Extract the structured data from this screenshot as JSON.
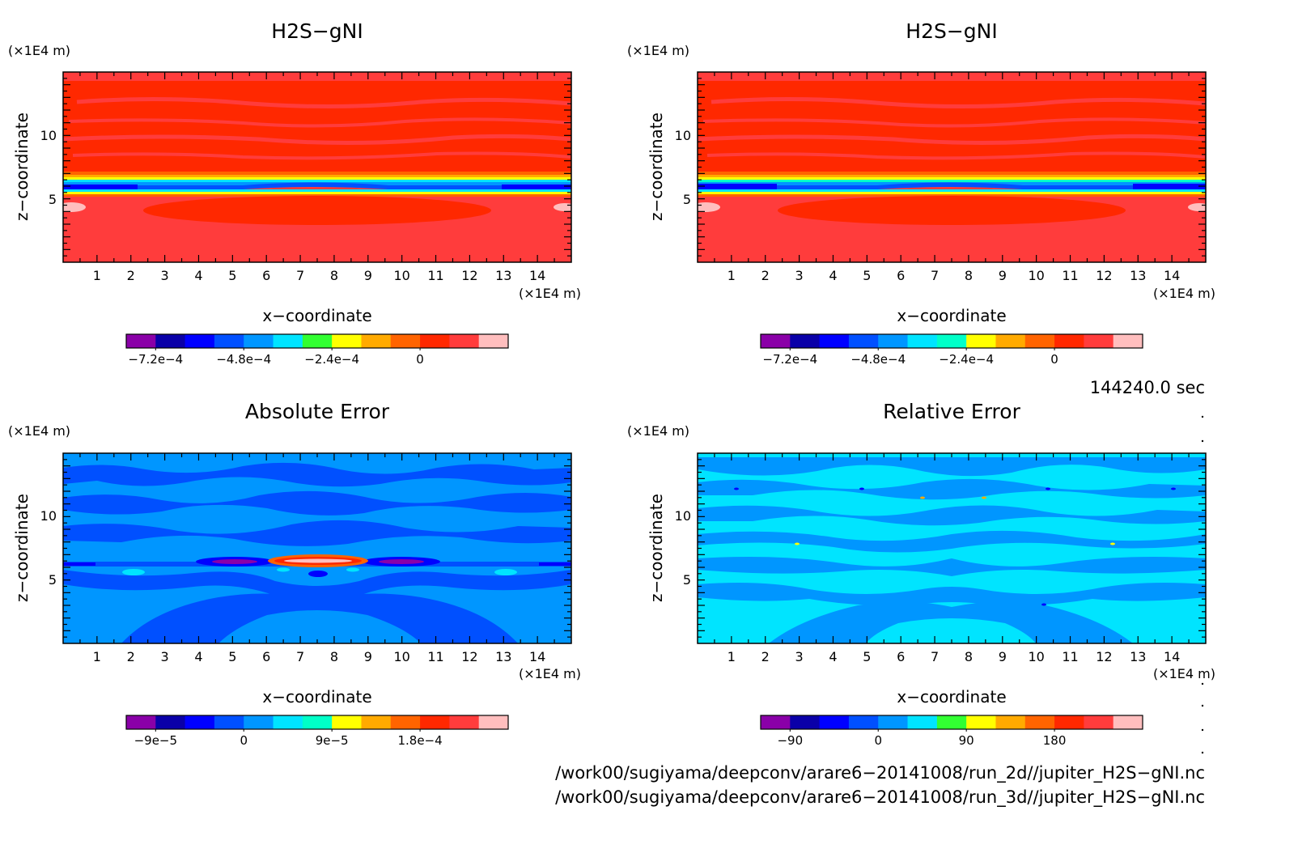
{
  "chart_data": [
    {
      "type": "heatmap",
      "title": "H2S−gNI",
      "xlabel": "x−coordinate",
      "ylabel": "z−coordinate",
      "x_unit": "(×1E4 m)",
      "y_unit": "(×1E4 m)",
      "x_ticks": [
        "1",
        "2",
        "3",
        "4",
        "5",
        "6",
        "7",
        "8",
        "9",
        "10",
        "11",
        "12",
        "13",
        "14"
      ],
      "y_ticks": [
        "5",
        "10"
      ],
      "xlim": [
        0,
        15
      ],
      "ylim": [
        0,
        15
      ],
      "colorbar": {
        "colors": [
          "#8a00a8",
          "#0a00a8",
          "#0000ff",
          "#0050ff",
          "#0096ff",
          "#00e4ff",
          "#32ff32",
          "#ffff00",
          "#ffaa00",
          "#ff6400",
          "#ff2800",
          "#ff3c3c",
          "#ffbebe"
        ],
        "labels": [
          "−7.2e−4",
          "−4.8e−4",
          "−2.4e−4",
          "0"
        ]
      }
    },
    {
      "type": "heatmap",
      "title": "H2S−gNI",
      "xlabel": "x−coordinate",
      "ylabel": "z−coordinate",
      "x_unit": "(×1E4 m)",
      "y_unit": "(×1E4 m)",
      "x_ticks": [
        "1",
        "2",
        "3",
        "4",
        "5",
        "6",
        "7",
        "8",
        "9",
        "10",
        "11",
        "12",
        "13",
        "14"
      ],
      "y_ticks": [
        "5",
        "10"
      ],
      "xlim": [
        0,
        15
      ],
      "ylim": [
        0,
        15
      ],
      "colorbar": {
        "colors": [
          "#8a00a8",
          "#0a00a8",
          "#0000ff",
          "#0050ff",
          "#0096ff",
          "#00e4ff",
          "#00ffc8",
          "#ffff00",
          "#ffaa00",
          "#ff6400",
          "#ff2800",
          "#ff3c3c",
          "#ffbebe"
        ],
        "labels": [
          "−7.2e−4",
          "−4.8e−4",
          "−2.4e−4",
          "0"
        ]
      }
    },
    {
      "type": "heatmap",
      "title": "Absolute Error",
      "xlabel": "x−coordinate",
      "ylabel": "z−coordinate",
      "x_unit": "(×1E4 m)",
      "y_unit": "(×1E4 m)",
      "x_ticks": [
        "1",
        "2",
        "3",
        "4",
        "5",
        "6",
        "7",
        "8",
        "9",
        "10",
        "11",
        "12",
        "13",
        "14"
      ],
      "y_ticks": [
        "5",
        "10"
      ],
      "xlim": [
        0,
        15
      ],
      "ylim": [
        0,
        15
      ],
      "colorbar": {
        "colors": [
          "#8a00a8",
          "#0a00a8",
          "#0000ff",
          "#0050ff",
          "#0096ff",
          "#00e4ff",
          "#00ffc8",
          "#ffff00",
          "#ffaa00",
          "#ff6400",
          "#ff2800",
          "#ff3c3c",
          "#ffbebe"
        ],
        "labels": [
          "−9e−5",
          "0",
          "9e−5",
          "1.8e−4"
        ]
      }
    },
    {
      "type": "heatmap",
      "title": "Relative Error",
      "xlabel": "x−coordinate",
      "ylabel": "z−coordinate",
      "x_unit": "(×1E4 m)",
      "y_unit": "(×1E4 m)",
      "x_ticks": [
        "1",
        "2",
        "3",
        "4",
        "5",
        "6",
        "7",
        "8",
        "9",
        "10",
        "11",
        "12",
        "13",
        "14"
      ],
      "y_ticks": [
        "5",
        "10"
      ],
      "xlim": [
        0,
        15
      ],
      "ylim": [
        0,
        15
      ],
      "colorbar": {
        "colors": [
          "#8a00a8",
          "#0a00a8",
          "#0000ff",
          "#0050ff",
          "#0096ff",
          "#00e4ff",
          "#32ff32",
          "#ffff00",
          "#ffaa00",
          "#ff6400",
          "#ff2800",
          "#ff3c3c",
          "#ffbebe"
        ],
        "labels": [
          "−90",
          "0",
          "90",
          "180"
        ]
      }
    }
  ],
  "time_label": "144240.0 sec",
  "file_paths": [
    "/work00/sugiyama/deepconv/arare6−20141008/run_2d//jupiter_H2S−gNI.nc",
    "/work00/sugiyama/deepconv/arare6−20141008/run_3d//jupiter_H2S−gNI.nc"
  ]
}
